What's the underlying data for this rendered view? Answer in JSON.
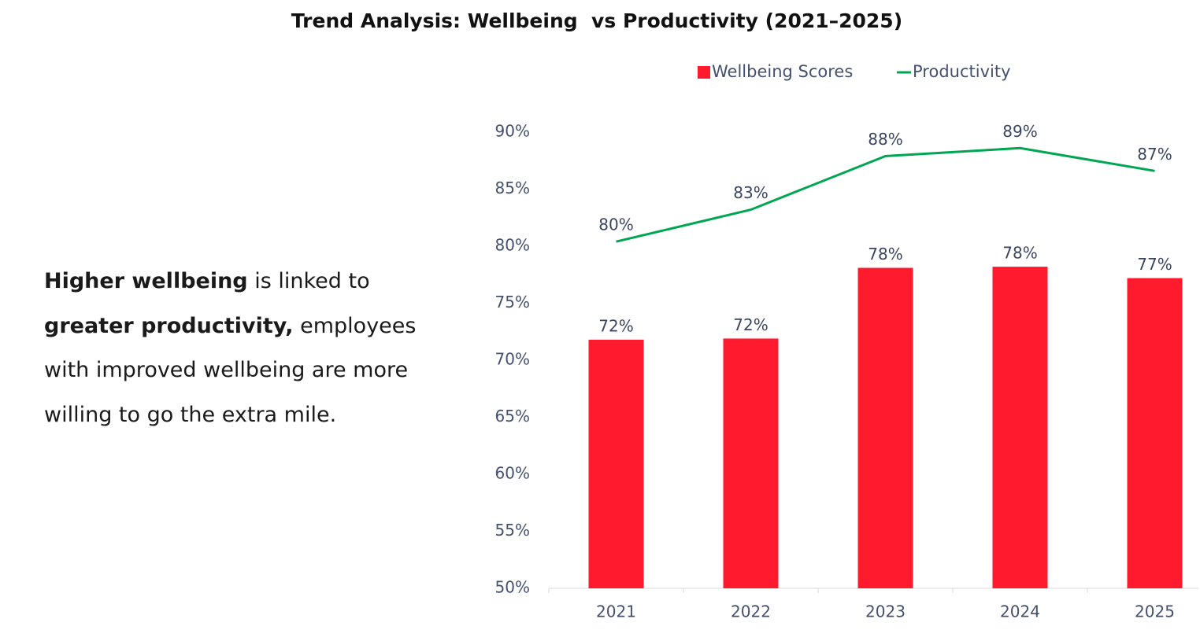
{
  "chart_data": {
    "type": "combo",
    "title": "Trend Analysis: Wellbeing  vs Productivity (2021–2025)",
    "categories": [
      "2021",
      "2022",
      "2023",
      "2024",
      "2025"
    ],
    "series": [
      {
        "name": "Wellbeing Scores",
        "type": "bar",
        "color": "#ff1a2d",
        "values": [
          71.8,
          71.9,
          78.1,
          78.2,
          77.2
        ],
        "value_labels": [
          "72%",
          "72%",
          "78%",
          "78%",
          "77%"
        ]
      },
      {
        "name": "Productivity",
        "type": "line",
        "color": "#00a651",
        "values": [
          80.4,
          83.2,
          87.9,
          88.6,
          86.6
        ],
        "value_labels": [
          "80%",
          "83%",
          "88%",
          "89%",
          "87%"
        ]
      }
    ],
    "ylim": [
      50,
      90
    ],
    "yticks": [
      {
        "value": 50,
        "label": "50%"
      },
      {
        "value": 55,
        "label": "55%"
      },
      {
        "value": 60,
        "label": "60%"
      },
      {
        "value": 65,
        "label": "65%"
      },
      {
        "value": 70,
        "label": "70%"
      },
      {
        "value": 75,
        "label": "75%"
      },
      {
        "value": 80,
        "label": "80%"
      },
      {
        "value": 85,
        "label": "85%"
      },
      {
        "value": 90,
        "label": "90%"
      }
    ],
    "grid": false,
    "legend": "top"
  },
  "annotation": [
    [
      {
        "text": "Higher wellbeing",
        "bold": true
      },
      {
        "text": " is linked to",
        "bold": false
      }
    ],
    [
      {
        "text": "greater productivity,",
        "bold": true
      },
      {
        "text": " employees",
        "bold": false
      }
    ],
    [
      {
        "text": "with improved wellbeing are more",
        "bold": false
      }
    ],
    [
      {
        "text": "willing to go the extra mile.",
        "bold": false
      }
    ]
  ]
}
